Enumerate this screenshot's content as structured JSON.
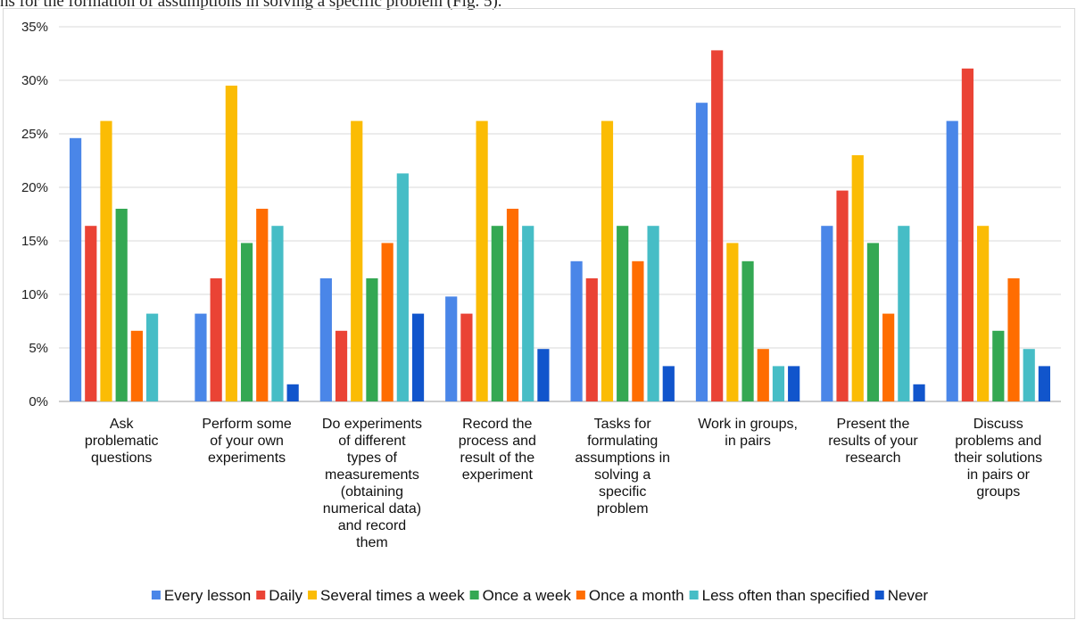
{
  "caption_fragment": "ns for the formation of assumptions in solving a specific problem (Fig. 5).",
  "chart_data": {
    "type": "bar",
    "categories": [
      [
        "Ask",
        "problematic",
        "questions"
      ],
      [
        "Perform some",
        "of your own",
        "experiments"
      ],
      [
        "Do experiments",
        "of different",
        "types of",
        "measurements",
        "(obtaining",
        "numerical data)",
        "and record",
        "them"
      ],
      [
        "Record the",
        "process and",
        "result of the",
        "experiment"
      ],
      [
        "Tasks for",
        "formulating",
        "assumptions in",
        "solving a",
        "specific",
        "problem"
      ],
      [
        "Work in groups,",
        "in pairs"
      ],
      [
        "Present the",
        "results of your",
        "research"
      ],
      [
        "Discuss",
        "problems and",
        "their solutions",
        "in pairs or",
        "groups"
      ]
    ],
    "series": [
      {
        "name": "Every lesson",
        "color": "#4a86e8",
        "values": [
          24.6,
          8.2,
          11.5,
          9.8,
          13.1,
          27.9,
          16.4,
          26.2
        ]
      },
      {
        "name": "Daily",
        "color": "#ea4335",
        "values": [
          16.4,
          11.5,
          6.6,
          8.2,
          11.5,
          32.8,
          19.7,
          31.1
        ]
      },
      {
        "name": "Several times a week",
        "color": "#fbbc04",
        "values": [
          26.2,
          29.5,
          26.2,
          26.2,
          26.2,
          14.8,
          23.0,
          16.4
        ]
      },
      {
        "name": "Once a week",
        "color": "#34a853",
        "values": [
          18.0,
          14.8,
          11.5,
          16.4,
          16.4,
          13.1,
          14.8,
          6.6
        ]
      },
      {
        "name": "Once a month",
        "color": "#ff6d01",
        "values": [
          6.6,
          18.0,
          14.8,
          18.0,
          13.1,
          4.9,
          8.2,
          11.5
        ]
      },
      {
        "name": "Less often than specified",
        "color": "#46bdc6",
        "values": [
          8.2,
          16.4,
          21.3,
          16.4,
          16.4,
          3.3,
          16.4,
          4.9
        ]
      },
      {
        "name": "Never",
        "color": "#1155cc",
        "values": [
          0,
          1.6,
          8.2,
          4.9,
          3.3,
          3.3,
          1.6,
          3.3
        ]
      }
    ],
    "yticks": [
      "0%",
      "5%",
      "10%",
      "15%",
      "20%",
      "25%",
      "30%",
      "35%"
    ],
    "ylim": [
      0,
      35
    ],
    "grid": true,
    "legend_position": "bottom",
    "title": "",
    "xlabel": "",
    "ylabel": ""
  }
}
